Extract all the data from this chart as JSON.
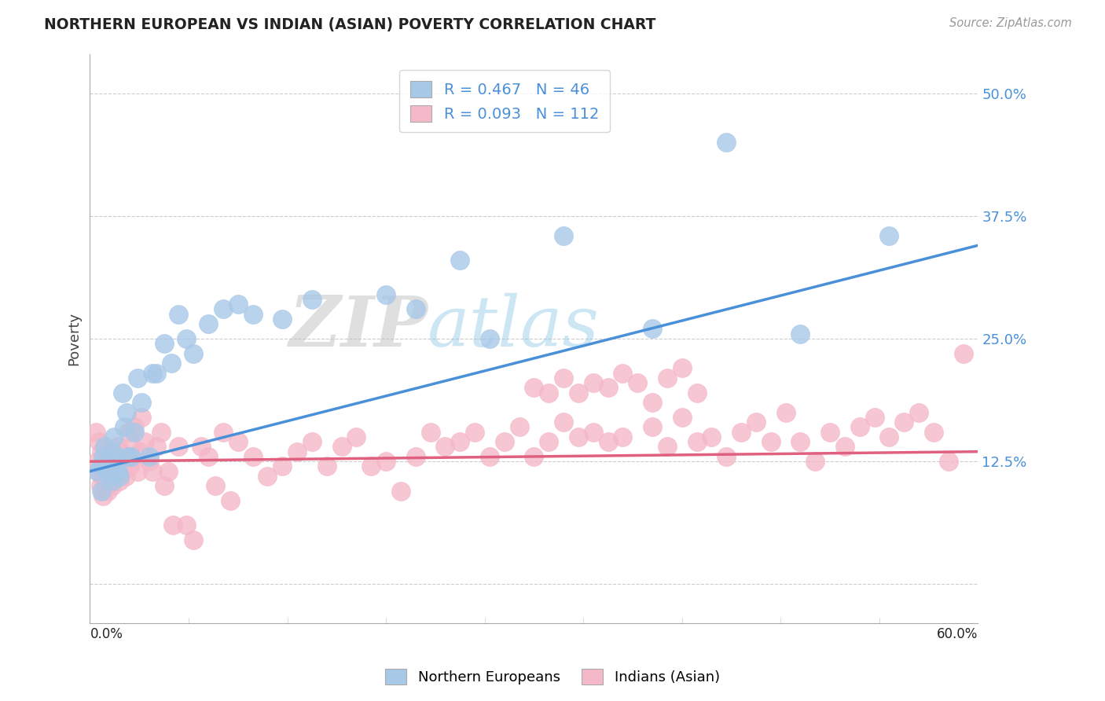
{
  "title": "NORTHERN EUROPEAN VS INDIAN (ASIAN) POVERTY CORRELATION CHART",
  "source": "Source: ZipAtlas.com",
  "ylabel": "Poverty",
  "xlim": [
    0.0,
    0.6
  ],
  "ylim": [
    -0.04,
    0.54
  ],
  "yticks": [
    0.0,
    0.125,
    0.25,
    0.375,
    0.5
  ],
  "ytick_labels": [
    "",
    "12.5%",
    "25.0%",
    "37.5%",
    "50.0%"
  ],
  "blue_R": 0.467,
  "blue_N": 46,
  "pink_R": 0.093,
  "pink_N": 112,
  "blue_color": "#a8c8e8",
  "pink_color": "#f5b8c8",
  "blue_line_color": "#4a90d9",
  "pink_line_color": "#e06080",
  "legend_label_blue": "Northern Europeans",
  "legend_label_pink": "Indians (Asian)",
  "watermark_zip": "ZIP",
  "watermark_atlas": "atlas",
  "background_color": "#ffffff",
  "grid_color": "#cccccc",
  "blue_line_x0": 0.0,
  "blue_line_y0": 0.115,
  "blue_line_x1": 0.6,
  "blue_line_y1": 0.345,
  "pink_line_x0": 0.0,
  "pink_line_y0": 0.125,
  "pink_line_x1": 0.6,
  "pink_line_y1": 0.135,
  "blue_scatter_x": [
    0.005,
    0.007,
    0.008,
    0.009,
    0.01,
    0.011,
    0.012,
    0.013,
    0.015,
    0.015,
    0.016,
    0.017,
    0.018,
    0.019,
    0.02,
    0.022,
    0.023,
    0.025,
    0.026,
    0.028,
    0.03,
    0.032,
    0.035,
    0.04,
    0.042,
    0.045,
    0.05,
    0.055,
    0.06,
    0.065,
    0.07,
    0.08,
    0.09,
    0.1,
    0.11,
    0.13,
    0.15,
    0.2,
    0.22,
    0.25,
    0.27,
    0.32,
    0.38,
    0.43,
    0.48,
    0.54
  ],
  "blue_scatter_y": [
    0.115,
    0.12,
    0.095,
    0.13,
    0.14,
    0.115,
    0.125,
    0.11,
    0.135,
    0.105,
    0.15,
    0.12,
    0.13,
    0.115,
    0.11,
    0.195,
    0.16,
    0.175,
    0.13,
    0.13,
    0.155,
    0.21,
    0.185,
    0.13,
    0.215,
    0.215,
    0.245,
    0.225,
    0.275,
    0.25,
    0.235,
    0.265,
    0.28,
    0.285,
    0.275,
    0.27,
    0.29,
    0.295,
    0.28,
    0.33,
    0.25,
    0.355,
    0.26,
    0.45,
    0.255,
    0.355
  ],
  "pink_scatter_x": [
    0.004,
    0.005,
    0.006,
    0.006,
    0.007,
    0.008,
    0.008,
    0.009,
    0.009,
    0.01,
    0.01,
    0.011,
    0.012,
    0.012,
    0.013,
    0.014,
    0.015,
    0.015,
    0.016,
    0.017,
    0.018,
    0.019,
    0.02,
    0.021,
    0.022,
    0.023,
    0.024,
    0.025,
    0.026,
    0.027,
    0.028,
    0.03,
    0.032,
    0.034,
    0.035,
    0.037,
    0.04,
    0.042,
    0.045,
    0.048,
    0.05,
    0.053,
    0.056,
    0.06,
    0.065,
    0.07,
    0.075,
    0.08,
    0.085,
    0.09,
    0.095,
    0.1,
    0.11,
    0.12,
    0.13,
    0.14,
    0.15,
    0.16,
    0.17,
    0.18,
    0.19,
    0.2,
    0.21,
    0.22,
    0.23,
    0.24,
    0.25,
    0.26,
    0.27,
    0.28,
    0.29,
    0.3,
    0.31,
    0.32,
    0.33,
    0.34,
    0.35,
    0.36,
    0.38,
    0.39,
    0.4,
    0.41,
    0.42,
    0.43,
    0.44,
    0.45,
    0.46,
    0.47,
    0.48,
    0.49,
    0.5,
    0.51,
    0.52,
    0.53,
    0.54,
    0.55,
    0.56,
    0.57,
    0.58,
    0.59,
    0.3,
    0.31,
    0.32,
    0.33,
    0.34,
    0.35,
    0.36,
    0.37,
    0.38,
    0.39,
    0.4,
    0.41
  ],
  "pink_scatter_y": [
    0.155,
    0.125,
    0.145,
    0.115,
    0.1,
    0.11,
    0.135,
    0.12,
    0.09,
    0.125,
    0.11,
    0.1,
    0.115,
    0.095,
    0.13,
    0.12,
    0.1,
    0.115,
    0.11,
    0.13,
    0.12,
    0.14,
    0.105,
    0.135,
    0.115,
    0.125,
    0.11,
    0.13,
    0.155,
    0.12,
    0.14,
    0.16,
    0.115,
    0.135,
    0.17,
    0.145,
    0.125,
    0.115,
    0.14,
    0.155,
    0.1,
    0.115,
    0.06,
    0.14,
    0.06,
    0.045,
    0.14,
    0.13,
    0.1,
    0.155,
    0.085,
    0.145,
    0.13,
    0.11,
    0.12,
    0.135,
    0.145,
    0.12,
    0.14,
    0.15,
    0.12,
    0.125,
    0.095,
    0.13,
    0.155,
    0.14,
    0.145,
    0.155,
    0.13,
    0.145,
    0.16,
    0.13,
    0.145,
    0.165,
    0.15,
    0.155,
    0.145,
    0.15,
    0.16,
    0.14,
    0.17,
    0.145,
    0.15,
    0.13,
    0.155,
    0.165,
    0.145,
    0.175,
    0.145,
    0.125,
    0.155,
    0.14,
    0.16,
    0.17,
    0.15,
    0.165,
    0.175,
    0.155,
    0.125,
    0.235,
    0.2,
    0.195,
    0.21,
    0.195,
    0.205,
    0.2,
    0.215,
    0.205,
    0.185,
    0.21,
    0.22,
    0.195
  ]
}
